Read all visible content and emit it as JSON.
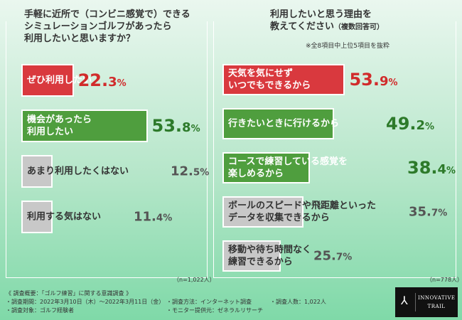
{
  "left": {
    "title_lines": [
      "手軽に近所で（コンビニ感覚で）できる",
      "シミュレーションゴルフがあったら",
      "利用したいと思いますか？"
    ],
    "sample": "（n=1,022人）"
  },
  "right": {
    "title_line1": "利用したいと思う理由を",
    "title_line2": "教えてください",
    "title_line2_small": "（複数回答可）",
    "note": "※全8項目中上位5項目を抜粋",
    "sample": "（n=778人）"
  },
  "colors": {
    "red": "#d9393e",
    "green": "#4f9e3e",
    "gray": "#c8c8c8",
    "red_text": "#d12b2b",
    "green_text": "#2d7a2a",
    "gray_text": "#555555"
  },
  "chart_data": [
    {
      "type": "bar",
      "title": "手軽に近所で（コンビニ感覚で）できるシミュレーションゴルフがあったら利用したいと思いますか？",
      "unit": "%",
      "categories": [
        "ぜひ利用したい",
        "機会があったら利用したい",
        "あまり利用したくはない",
        "利用する気はない"
      ],
      "label_lines": [
        [
          "ぜひ利用したい"
        ],
        [
          "機会があったら",
          "利用したい"
        ],
        [
          "あまり利用したくはない"
        ],
        [
          "利用する気はない"
        ]
      ],
      "values": [
        22.3,
        53.8,
        12.5,
        11.4
      ],
      "value_text": [
        [
          "22.",
          "3"
        ],
        [
          "53.",
          "8"
        ],
        [
          "12.",
          "5"
        ],
        [
          "11.",
          "4"
        ]
      ],
      "color_keys": [
        "red",
        "green",
        "gray",
        "gray"
      ]
    },
    {
      "type": "bar",
      "title": "利用したいと思う理由を教えてください（複数回答可）",
      "unit": "%",
      "categories": [
        "天気を気にせずいつでもできるから",
        "行きたいときに行けるから",
        "コースで練習している感覚を楽しめるから",
        "ボールのスピードや飛距離といったデータを収集できるから",
        "移動や待ち時間なく練習できるから"
      ],
      "label_lines": [
        [
          "天気を気にせず",
          "いつでもできるから"
        ],
        [
          "行きたいときに行けるから"
        ],
        [
          "コースで練習している感覚を",
          "楽しめるから"
        ],
        [
          "ボールのスピードや飛距離といった",
          "データを収集できるから"
        ],
        [
          "移動や待ち時間なく",
          "練習できるから"
        ]
      ],
      "values": [
        53.9,
        49.2,
        38.4,
        35.7,
        25.7
      ],
      "value_text": [
        [
          "53.",
          "9"
        ],
        [
          "49.",
          "2"
        ],
        [
          "38.",
          "4"
        ],
        [
          "35.",
          "7"
        ],
        [
          "25.",
          "7"
        ]
      ],
      "color_keys": [
        "red",
        "green",
        "green",
        "gray",
        "gray"
      ]
    }
  ],
  "footer": {
    "heading": "《 調査概要：「ゴルフ練習」に関する意識調査 》",
    "period": "・調査期間：2022年3月10日（木）〜2022年3月11日（金）",
    "target": "・調査対象：ゴルフ経験者",
    "method": "・調査方法：インターネット調査",
    "provider": "・モニター提供元：ゼネラルリサーチ",
    "count": "・調査人数：1,022人"
  },
  "logo": {
    "line1": "INNOVATIVE",
    "line2": "TRAIL"
  }
}
